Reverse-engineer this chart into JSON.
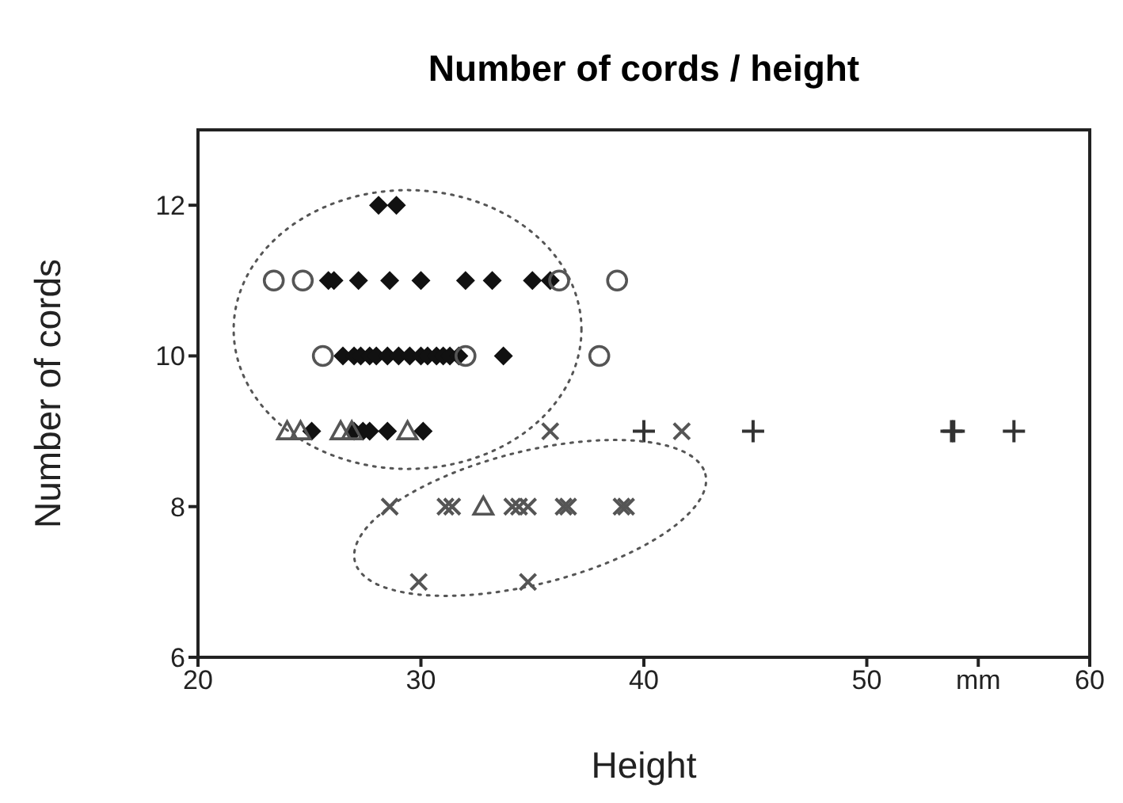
{
  "chart_data": {
    "type": "scatter",
    "title": "Number of cords / height",
    "xlabel": "Height",
    "ylabel": "Number of cords",
    "xlim": [
      20,
      60
    ],
    "xticks": [
      20,
      30,
      40,
      50,
      {
        "value": 55,
        "label": "mm"
      },
      60
    ],
    "ylim": [
      6,
      13
    ],
    "yticks": [
      6,
      8,
      10,
      12
    ],
    "legend": false,
    "series": [
      {
        "color": "#111111",
        "marker": "diamond",
        "x": [
          28.1,
          28.9,
          25.85,
          26.1,
          27.2,
          28.6,
          30.0,
          32.0,
          33.2,
          35.0,
          35.8,
          26.5,
          27.0,
          27.3,
          27.7,
          28.0,
          28.5,
          29.0,
          29.5,
          30.0,
          30.3,
          30.7,
          31.0,
          31.3,
          31.7,
          33.7,
          25.1,
          27.0,
          27.4,
          27.7,
          28.5,
          30.1
        ],
        "values": [
          12,
          12,
          11,
          11,
          11,
          11,
          11,
          11,
          11,
          11,
          11,
          10,
          10,
          10,
          10,
          10,
          10,
          10,
          10,
          10,
          10,
          10,
          10,
          10,
          10,
          10,
          9,
          9,
          9,
          9,
          9,
          9
        ]
      },
      {
        "color": "#555555",
        "marker": "circle",
        "x": [
          23.4,
          24.7,
          36.2,
          38.8,
          25.6,
          32.0,
          38.0
        ],
        "values": [
          11,
          11,
          11,
          11,
          10,
          10,
          10
        ]
      },
      {
        "color": "#555555",
        "marker": "triangle",
        "x": [
          24.0,
          24.6,
          26.4,
          26.9,
          29.4,
          32.8
        ],
        "values": [
          9,
          9,
          9,
          9,
          9,
          8
        ]
      },
      {
        "color": "#555555",
        "marker": "x",
        "x": [
          35.8,
          41.7,
          28.6,
          31.1,
          31.4,
          34.1,
          34.4,
          34.8,
          36.4,
          36.6,
          39.0,
          39.2,
          29.9,
          34.8
        ],
        "values": [
          9,
          9,
          8,
          8,
          8,
          8,
          8,
          8,
          8,
          8,
          8,
          8,
          7,
          7
        ]
      },
      {
        "color": "#333333",
        "marker": "cross",
        "x": [
          40.0,
          44.9,
          53.8,
          53.9,
          56.6
        ],
        "values": [
          9,
          9,
          9,
          9,
          9
        ]
      }
    ]
  }
}
